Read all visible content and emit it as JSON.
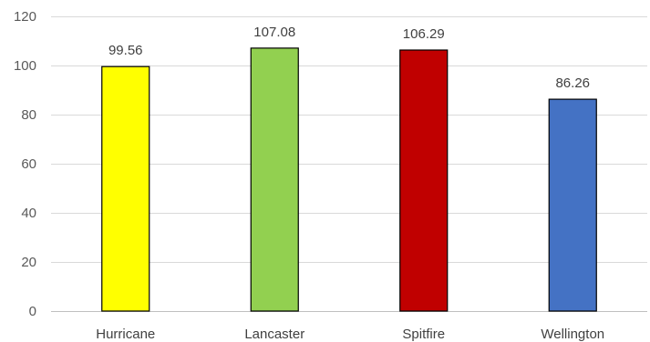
{
  "chart_data": {
    "type": "bar",
    "title": "",
    "xlabel": "",
    "ylabel": "",
    "categories": [
      "Hurricane",
      "Lancaster",
      "Spitfire",
      "Wellington"
    ],
    "values": [
      99.56,
      107.08,
      106.29,
      86.26
    ],
    "data_labels": [
      "99.56",
      "107.08",
      "106.29",
      "86.26"
    ],
    "colors": [
      "#ffff00",
      "#92d050",
      "#c00000",
      "#4472c4"
    ],
    "ylim": [
      0,
      120
    ],
    "yticks": [
      0,
      20,
      40,
      60,
      80,
      100,
      120
    ],
    "ytick_labels": [
      "0",
      "20",
      "40",
      "60",
      "80",
      "100",
      "120"
    ],
    "grid": true,
    "legend": "none"
  }
}
